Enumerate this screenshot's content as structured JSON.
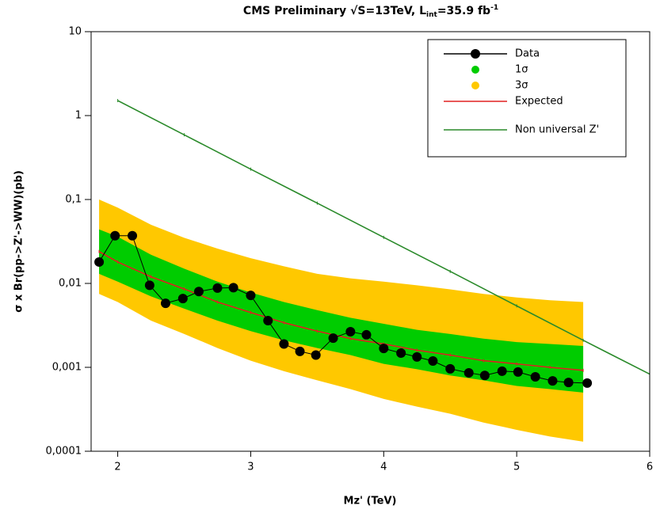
{
  "chart_data": {
    "type": "line",
    "title_parts": [
      "CMS Preliminary √S=13TeV, L",
      "int",
      "=35.9 fb",
      "-1"
    ],
    "x_label": "Mz' (TeV)",
    "y_label": "σ x Br(pp->Z'->WW)(pb)",
    "xlim": [
      1.8,
      6.0
    ],
    "xticks": [
      2,
      3,
      4,
      5,
      6
    ],
    "ylim": [
      0.0001,
      10
    ],
    "yscale": "log",
    "yticks": [
      {
        "value": 0.0001,
        "label": "0,0001"
      },
      {
        "value": 0.001,
        "label": "0,001"
      },
      {
        "value": 0.01,
        "label": "0,01"
      },
      {
        "value": 0.1,
        "label": "0,1"
      },
      1,
      10
    ],
    "legend": "upper right",
    "series": [
      {
        "name": "Data",
        "color": "#000000",
        "marker": true,
        "x": [
          1.86,
          1.98,
          2.11,
          2.24,
          2.36,
          2.49,
          2.61,
          2.75,
          2.87,
          3.0,
          3.13,
          3.25,
          3.37,
          3.49,
          3.62,
          3.75,
          3.87,
          4.0,
          4.13,
          4.25,
          4.37,
          4.5,
          4.64,
          4.76,
          4.89,
          5.01,
          5.14,
          5.27,
          5.39,
          5.53
        ],
        "values": [
          0.018,
          0.037,
          0.037,
          0.0095,
          0.0058,
          0.0066,
          0.008,
          0.0088,
          0.0089,
          0.0072,
          0.0036,
          0.0019,
          0.00155,
          0.0014,
          0.00223,
          0.00266,
          0.00244,
          0.00168,
          0.00148,
          0.00133,
          0.00119,
          0.00096,
          0.00086,
          0.0008,
          0.0009,
          0.00088,
          0.00077,
          0.00069,
          0.00066,
          0.00065
        ]
      },
      {
        "name": "1σ",
        "color": "#00cc00",
        "x": [
          1.86,
          2.0,
          2.25,
          2.5,
          2.75,
          3.0,
          3.25,
          3.5,
          3.75,
          4.0,
          4.25,
          4.5,
          4.75,
          5.0,
          5.25,
          5.5
        ],
        "upper": [
          0.044,
          0.036,
          0.022,
          0.015,
          0.0105,
          0.0078,
          0.006,
          0.0048,
          0.0039,
          0.0033,
          0.0028,
          0.0025,
          0.0022,
          0.002,
          0.0019,
          0.0018
        ],
        "lower": [
          0.013,
          0.0105,
          0.007,
          0.005,
          0.0036,
          0.0027,
          0.0021,
          0.0017,
          0.0014,
          0.0011,
          0.00095,
          0.0008,
          0.0007,
          0.0006,
          0.00055,
          0.0005
        ]
      },
      {
        "name": "3σ",
        "color": "#ffc800",
        "x": [
          1.86,
          2.0,
          2.25,
          2.5,
          2.75,
          3.0,
          3.25,
          3.5,
          3.75,
          4.0,
          4.25,
          4.5,
          4.75,
          5.0,
          5.25,
          5.5
        ],
        "upper": [
          0.1,
          0.08,
          0.05,
          0.035,
          0.026,
          0.02,
          0.016,
          0.013,
          0.0115,
          0.0105,
          0.0095,
          0.0085,
          0.0075,
          0.0068,
          0.0063,
          0.006
        ],
        "lower": [
          0.0075,
          0.006,
          0.0036,
          0.0025,
          0.0017,
          0.0012,
          0.0009,
          0.0007,
          0.00055,
          0.00042,
          0.00034,
          0.00028,
          0.00022,
          0.00018,
          0.00015,
          0.00013
        ]
      },
      {
        "name": "Expected",
        "color": "#e02020",
        "x": [
          1.86,
          2.0,
          2.25,
          2.5,
          2.75,
          3.0,
          3.25,
          3.5,
          3.75,
          4.0,
          4.25,
          4.5,
          4.75,
          5.0,
          5.25,
          5.5
        ],
        "values": [
          0.024,
          0.018,
          0.012,
          0.0086,
          0.006,
          0.0045,
          0.0034,
          0.0027,
          0.0022,
          0.0019,
          0.0016,
          0.0014,
          0.0012,
          0.0011,
          0.001,
          0.00092
        ]
      },
      {
        "name": "Non universal Z'",
        "color": "#2a8a2a",
        "x": [
          2,
          2.5,
          3,
          3.5,
          4,
          4.5,
          5,
          5.5,
          6
        ],
        "values": [
          1.51,
          0.59,
          0.23,
          0.0905,
          0.0354,
          0.0139,
          0.0054,
          0.0021,
          0.00083
        ]
      }
    ]
  }
}
